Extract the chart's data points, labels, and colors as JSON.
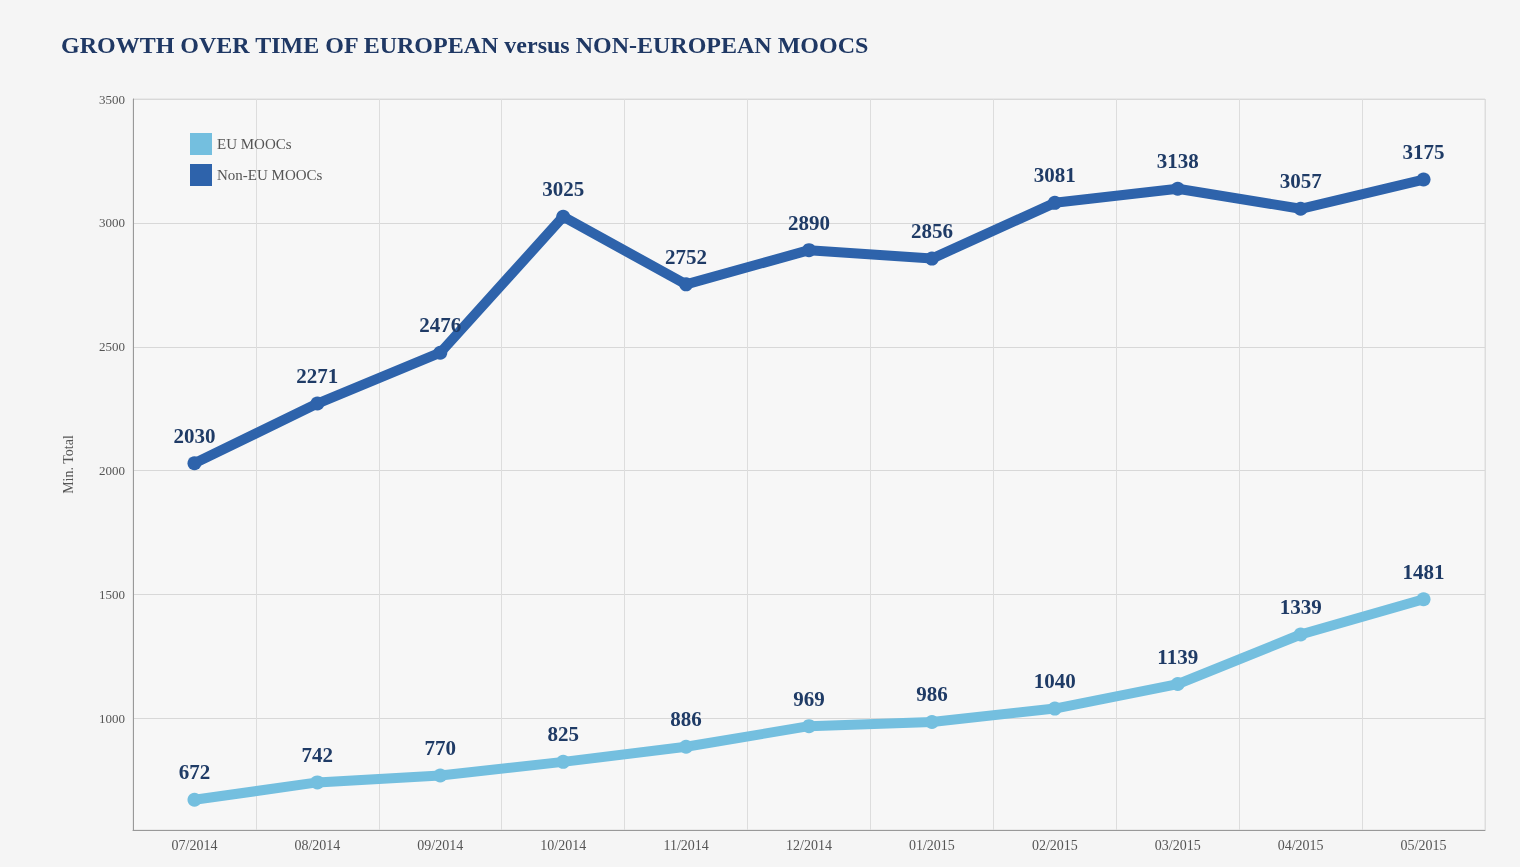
{
  "chart_data": {
    "type": "line",
    "title": "GROWTH OVER TIME OF EUROPEAN versus NON-EUROPEAN MOOCS",
    "ylabel": "Min. Total",
    "categories": [
      "07/2014",
      "08/2014",
      "09/2014",
      "10/2014",
      "11/2014",
      "12/2014",
      "01/2015",
      "02/2015",
      "03/2015",
      "04/2015",
      "05/2015"
    ],
    "series": [
      {
        "name": "EU MOOCs",
        "color": "#74bfdf",
        "values": [
          672,
          742,
          770,
          825,
          886,
          969,
          986,
          1040,
          1139,
          1339,
          1481
        ]
      },
      {
        "name": "Non-EU MOOCs",
        "color": "#2e63ab",
        "values": [
          2030,
          2271,
          2476,
          3025,
          2752,
          2890,
          2856,
          3081,
          3138,
          3057,
          3175
        ]
      }
    ],
    "ylim": [
      550,
      3500
    ],
    "yticks": [
      1000,
      1500,
      2000,
      2500,
      3000,
      3500
    ],
    "grid": true,
    "legend": "top left",
    "marker": "circle",
    "line_style": "solid",
    "data_labels": true
  }
}
